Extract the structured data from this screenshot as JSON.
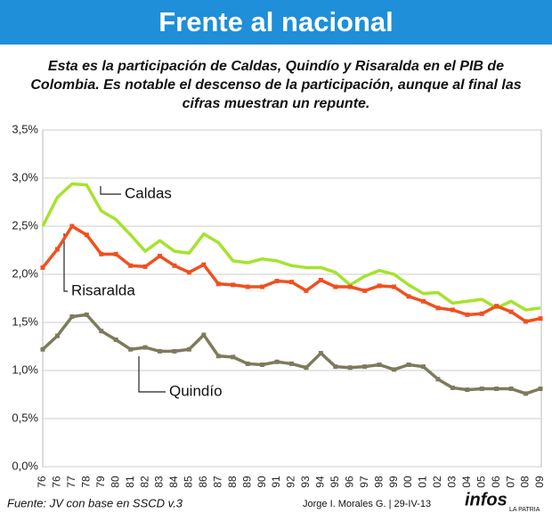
{
  "chart_data": {
    "type": "line",
    "title": "Frente al nacional",
    "subtitle": "Esta es la participación de Caldas, Quindío y Risaralda en el PIB de Colombia. Es notable el descenso de la participación, aunque al final las cifras muestran un repunte.",
    "source": "Fuente: JV con base en SSCD v.3",
    "credit": "Jorge I. Morales G. | 29-IV-13",
    "logo": "infos",
    "logo_sub": "LA PATRIA",
    "categories": [
      "76",
      "76",
      "77",
      "78",
      "79",
      "80",
      "81",
      "82",
      "83",
      "84",
      "85",
      "86",
      "87",
      "88",
      "89",
      "90",
      "91",
      "92",
      "93",
      "94",
      "95",
      "96",
      "97",
      "98",
      "99",
      "00",
      "01",
      "02",
      "03",
      "04",
      "05",
      "06",
      "07",
      "08",
      "09"
    ],
    "ylim": [
      0,
      3.5
    ],
    "yticks": [
      {
        "value": 0,
        "label": "0,0%"
      },
      {
        "value": 0.5,
        "label": "0,5%"
      },
      {
        "value": 1,
        "label": "1,0%"
      },
      {
        "value": 1.5,
        "label": "1,5%"
      },
      {
        "value": 2,
        "label": "2,0%"
      },
      {
        "value": 2.5,
        "label": "2,5%"
      },
      {
        "value": 3,
        "label": "3,0%"
      },
      {
        "value": 3.5,
        "label": "3,5%"
      }
    ],
    "grid": true,
    "series": [
      {
        "name": "Caldas",
        "color": "#a6e22e",
        "markers": false,
        "values": [
          2.5,
          2.8,
          2.94,
          2.93,
          2.66,
          2.57,
          2.41,
          2.24,
          2.35,
          2.24,
          2.22,
          2.42,
          2.33,
          2.14,
          2.12,
          2.16,
          2.14,
          2.09,
          2.07,
          2.07,
          2.02,
          1.89,
          1.98,
          2.04,
          2.0,
          1.89,
          1.8,
          1.81,
          1.7,
          1.72,
          1.74,
          1.65,
          1.72,
          1.63,
          1.65
        ]
      },
      {
        "name": "Risaralda",
        "color": "#f0501e",
        "markers": true,
        "values": [
          2.07,
          2.26,
          2.5,
          2.41,
          2.21,
          2.21,
          2.09,
          2.08,
          2.19,
          2.09,
          2.02,
          2.1,
          1.9,
          1.89,
          1.87,
          1.87,
          1.93,
          1.92,
          1.83,
          1.94,
          1.87,
          1.87,
          1.83,
          1.88,
          1.87,
          1.77,
          1.72,
          1.65,
          1.63,
          1.58,
          1.59,
          1.67,
          1.61,
          1.51,
          1.54
        ]
      },
      {
        "name": "Quindío",
        "color": "#7d7b5c",
        "markers": true,
        "values": [
          1.22,
          1.36,
          1.56,
          1.58,
          1.41,
          1.32,
          1.22,
          1.24,
          1.2,
          1.2,
          1.22,
          1.37,
          1.15,
          1.14,
          1.07,
          1.06,
          1.09,
          1.07,
          1.03,
          1.18,
          1.04,
          1.03,
          1.04,
          1.06,
          1.01,
          1.06,
          1.04,
          0.91,
          0.82,
          0.8,
          0.81,
          0.81,
          0.81,
          0.76,
          0.81
        ]
      }
    ]
  }
}
